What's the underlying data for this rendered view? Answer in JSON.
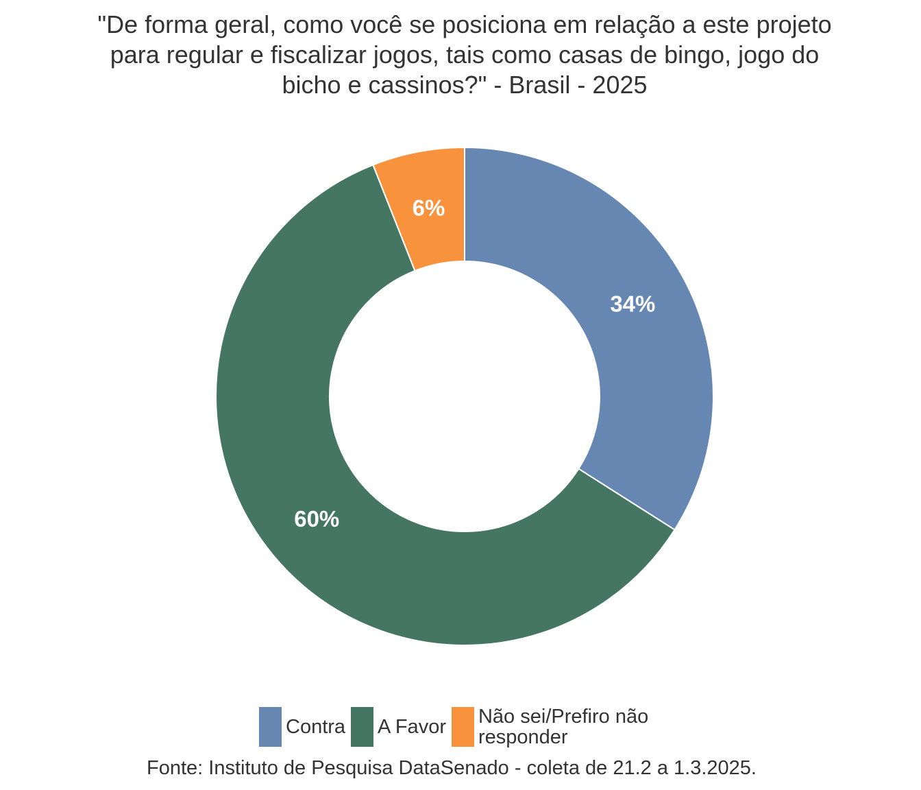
{
  "chart_data": {
    "type": "pie",
    "subtype": "donut",
    "title": "\"De forma geral, como você se posiciona em relação a este projeto para regular e fiscalizar jogos, tais como casas de bingo, jogo do bicho e cassinos?\" - Brasil - 2025",
    "categories": [
      "Contra",
      "A Favor",
      "Não sei/Prefiro não responder"
    ],
    "values": [
      34,
      60,
      6
    ],
    "value_labels": [
      "34%",
      "60%",
      "6%"
    ],
    "colors": [
      "#6587B1",
      "#457563",
      "#F8923C"
    ],
    "legend_position": "bottom",
    "caption": "Fonte: Instituto de Pesquisa DataSenado - coleta de 21.2 a 1.3.2025."
  }
}
